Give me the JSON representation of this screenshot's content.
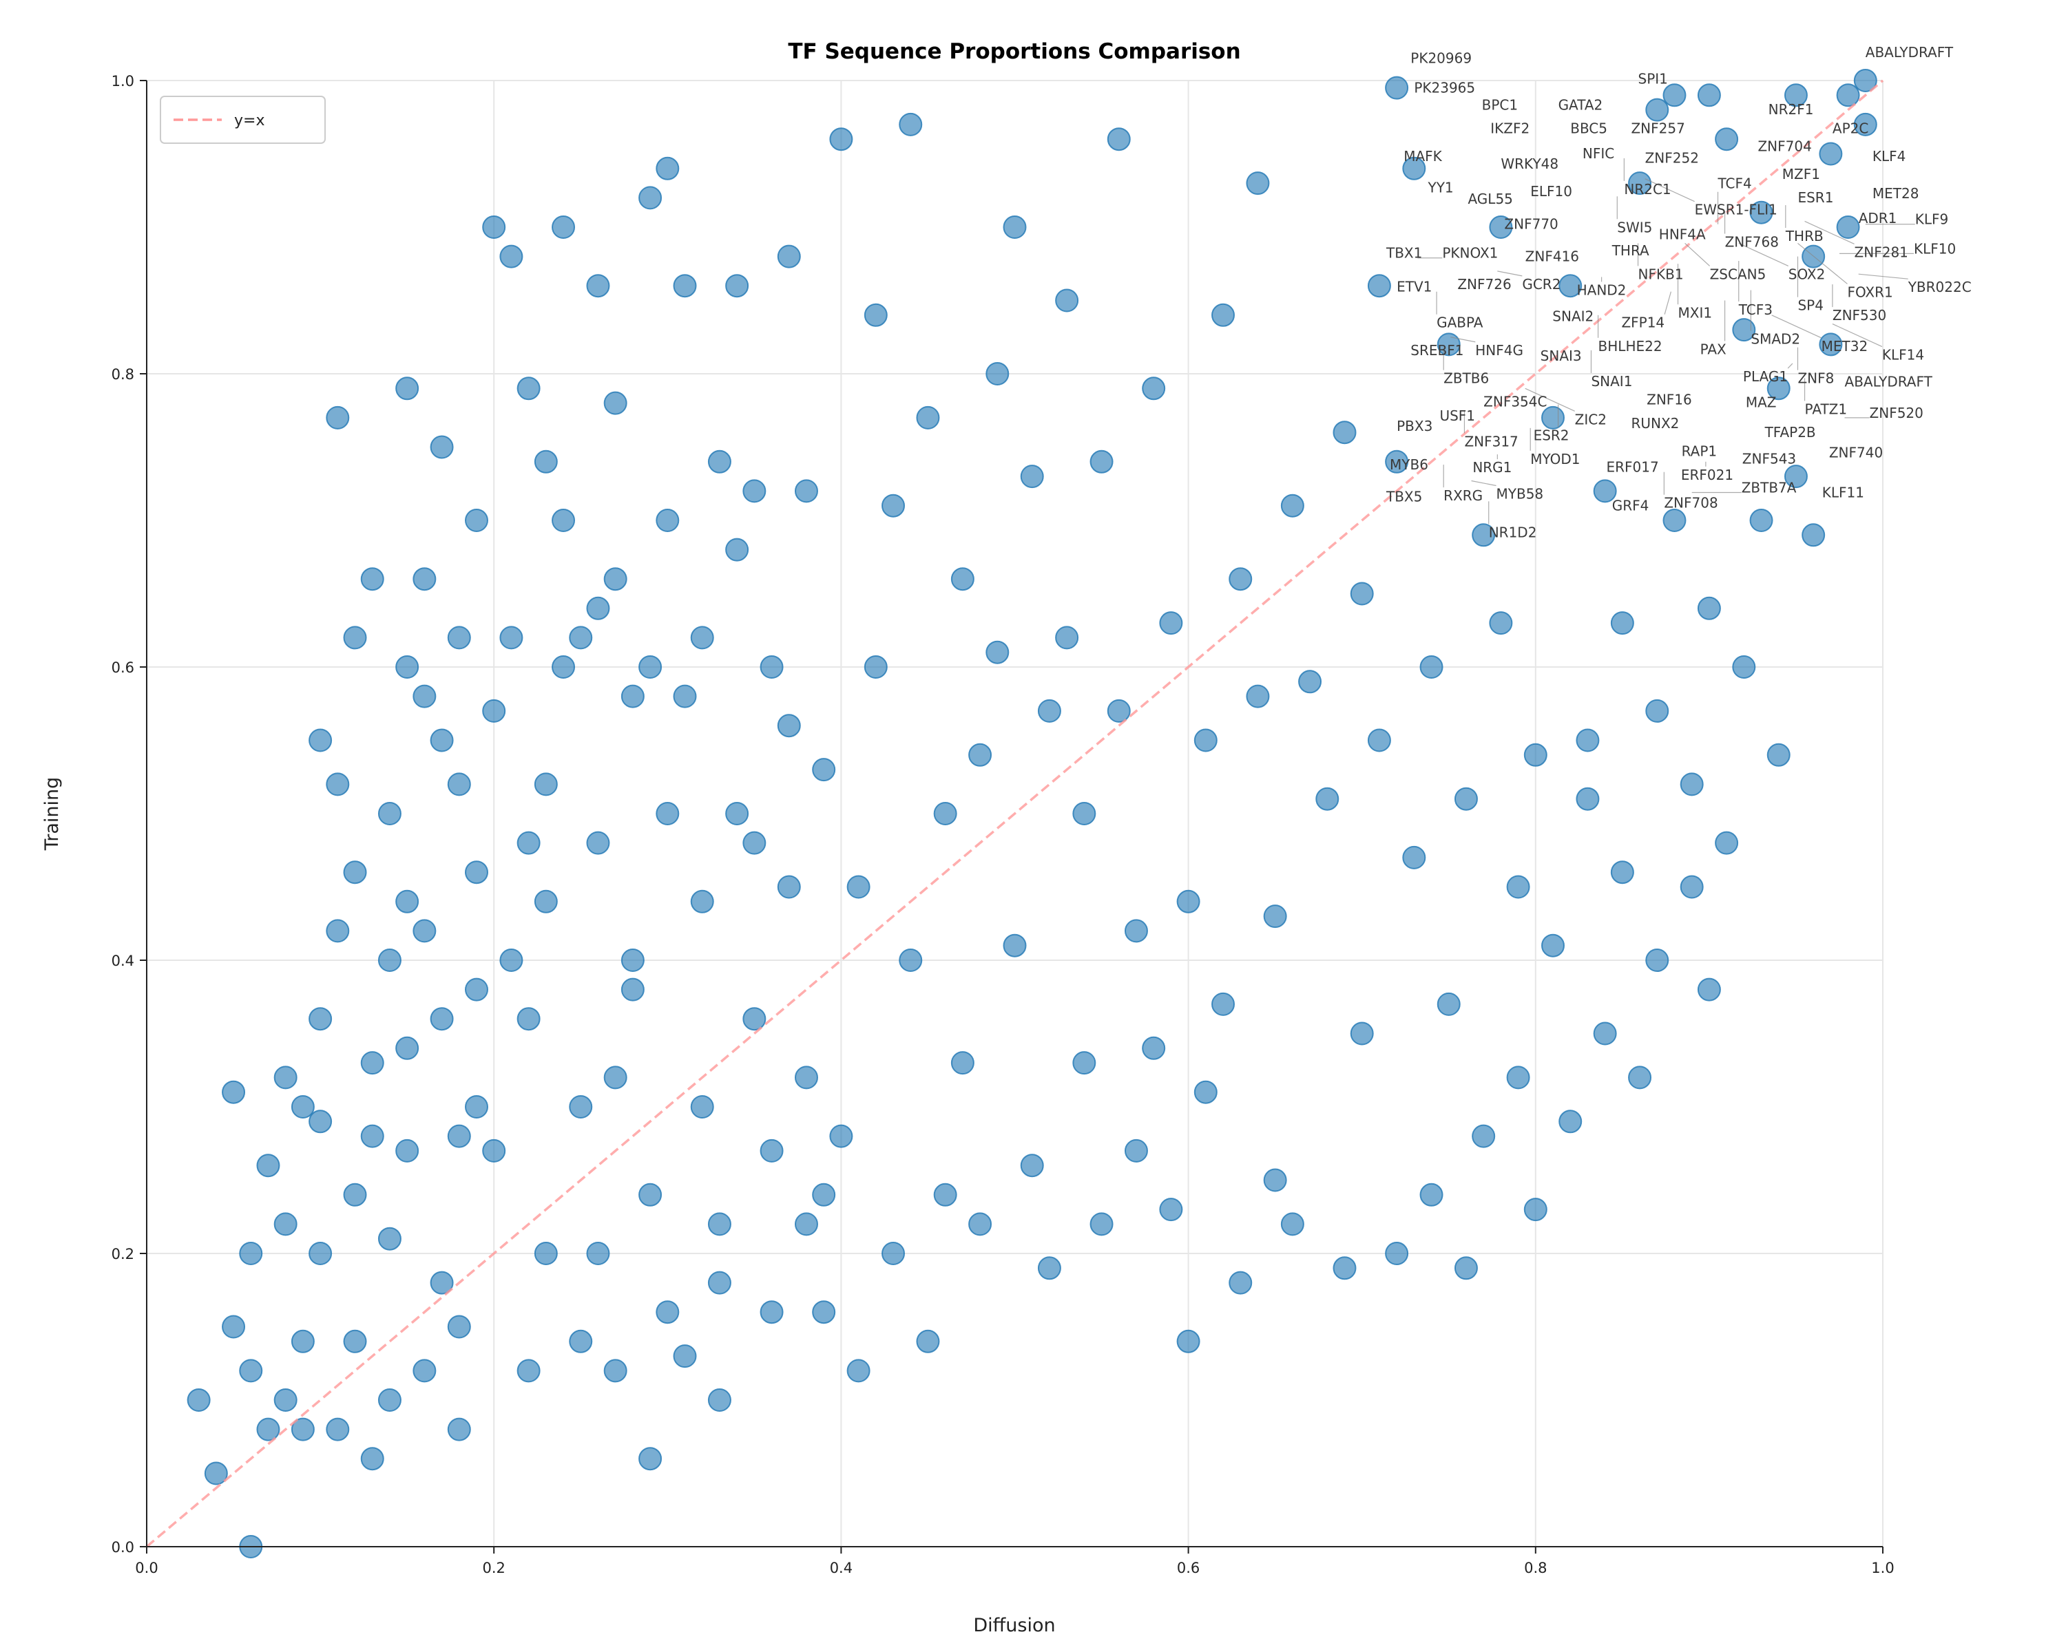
{
  "chart_data": {
    "type": "scatter",
    "title": "TF Sequence Proportions Comparison",
    "xlabel": "Diffusion",
    "ylabel": "Training",
    "xlim": [
      0,
      1
    ],
    "ylim": [
      0,
      1
    ],
    "xticks": [
      "0.0",
      "0.2",
      "0.4",
      "0.6",
      "0.8",
      "1.0"
    ],
    "yticks": [
      "0.0",
      "0.2",
      "0.4",
      "0.6",
      "0.8",
      "1.0"
    ],
    "grid": true,
    "legend": {
      "placement": "top-left",
      "entries": [
        {
          "label": "y=x",
          "style": "dashed",
          "color": "#ff9999"
        }
      ]
    },
    "reference_line": {
      "label": "y=x",
      "from": [
        0,
        0
      ],
      "to": [
        1,
        1
      ]
    },
    "marker_color": "#1f77b4",
    "points": [
      [
        0.03,
        0.1
      ],
      [
        0.04,
        0.05
      ],
      [
        0.05,
        0.15
      ],
      [
        0.06,
        0.2
      ],
      [
        0.07,
        0.26
      ],
      [
        0.08,
        0.1
      ],
      [
        0.09,
        0.08
      ],
      [
        0.09,
        0.3
      ],
      [
        0.1,
        0.36
      ],
      [
        0.1,
        0.2
      ],
      [
        0.11,
        0.42
      ],
      [
        0.12,
        0.24
      ],
      [
        0.12,
        0.14
      ],
      [
        0.13,
        0.33
      ],
      [
        0.13,
        0.06
      ],
      [
        0.14,
        0.5
      ],
      [
        0.15,
        0.27
      ],
      [
        0.15,
        0.44
      ],
      [
        0.16,
        0.58
      ],
      [
        0.16,
        0.12
      ],
      [
        0.17,
        0.36
      ],
      [
        0.17,
        0.18
      ],
      [
        0.18,
        0.52
      ],
      [
        0.18,
        0.08
      ],
      [
        0.19,
        0.3
      ],
      [
        0.06,
        0.0
      ],
      [
        0.07,
        0.08
      ],
      [
        0.08,
        0.32
      ],
      [
        0.1,
        0.55
      ],
      [
        0.11,
        0.52
      ],
      [
        0.12,
        0.62
      ],
      [
        0.14,
        0.4
      ],
      [
        0.15,
        0.6
      ],
      [
        0.16,
        0.66
      ],
      [
        0.17,
        0.75
      ],
      [
        0.18,
        0.62
      ],
      [
        0.19,
        0.46
      ],
      [
        0.2,
        0.57
      ],
      [
        0.2,
        0.9
      ],
      [
        0.21,
        0.62
      ],
      [
        0.21,
        0.88
      ],
      [
        0.22,
        0.79
      ],
      [
        0.22,
        0.36
      ],
      [
        0.23,
        0.52
      ],
      [
        0.23,
        0.2
      ],
      [
        0.24,
        0.7
      ],
      [
        0.24,
        0.9
      ],
      [
        0.25,
        0.62
      ],
      [
        0.25,
        0.3
      ],
      [
        0.26,
        0.86
      ],
      [
        0.26,
        0.48
      ],
      [
        0.27,
        0.66
      ],
      [
        0.27,
        0.12
      ],
      [
        0.28,
        0.58
      ],
      [
        0.28,
        0.38
      ],
      [
        0.29,
        0.92
      ],
      [
        0.29,
        0.24
      ],
      [
        0.3,
        0.7
      ],
      [
        0.3,
        0.5
      ],
      [
        0.31,
        0.86
      ],
      [
        0.31,
        0.13
      ],
      [
        0.32,
        0.62
      ],
      [
        0.32,
        0.3
      ],
      [
        0.33,
        0.74
      ],
      [
        0.33,
        0.18
      ],
      [
        0.34,
        0.5
      ],
      [
        0.34,
        0.86
      ],
      [
        0.35,
        0.36
      ],
      [
        0.35,
        0.72
      ],
      [
        0.36,
        0.16
      ],
      [
        0.36,
        0.6
      ],
      [
        0.37,
        0.88
      ],
      [
        0.37,
        0.45
      ],
      [
        0.38,
        0.22
      ],
      [
        0.38,
        0.72
      ],
      [
        0.39,
        0.16
      ],
      [
        0.39,
        0.53
      ],
      [
        0.4,
        0.96
      ],
      [
        0.4,
        0.28
      ],
      [
        0.41,
        0.45
      ],
      [
        0.41,
        0.12
      ],
      [
        0.42,
        0.6
      ],
      [
        0.42,
        0.84
      ],
      [
        0.43,
        0.71
      ],
      [
        0.43,
        0.2
      ],
      [
        0.44,
        0.4
      ],
      [
        0.44,
        0.97
      ],
      [
        0.45,
        0.14
      ],
      [
        0.45,
        0.77
      ],
      [
        0.46,
        0.5
      ],
      [
        0.46,
        0.24
      ],
      [
        0.47,
        0.66
      ],
      [
        0.47,
        0.33
      ],
      [
        0.48,
        0.54
      ],
      [
        0.48,
        0.22
      ],
      [
        0.49,
        0.8
      ],
      [
        0.49,
        0.61
      ],
      [
        0.5,
        0.41
      ],
      [
        0.5,
        0.9
      ],
      [
        0.51,
        0.26
      ],
      [
        0.51,
        0.73
      ],
      [
        0.52,
        0.57
      ],
      [
        0.52,
        0.19
      ],
      [
        0.53,
        0.85
      ],
      [
        0.53,
        0.62
      ],
      [
        0.54,
        0.33
      ],
      [
        0.54,
        0.5
      ],
      [
        0.55,
        0.74
      ],
      [
        0.55,
        0.22
      ],
      [
        0.56,
        0.96
      ],
      [
        0.56,
        0.57
      ],
      [
        0.57,
        0.42
      ],
      [
        0.57,
        0.27
      ],
      [
        0.58,
        0.79
      ],
      [
        0.58,
        0.34
      ],
      [
        0.59,
        0.63
      ],
      [
        0.59,
        0.23
      ],
      [
        0.6,
        0.44
      ],
      [
        0.6,
        0.14
      ],
      [
        0.61,
        0.55
      ],
      [
        0.61,
        0.31
      ],
      [
        0.62,
        0.84
      ],
      [
        0.62,
        0.37
      ],
      [
        0.63,
        0.66
      ],
      [
        0.63,
        0.18
      ],
      [
        0.64,
        0.93
      ],
      [
        0.64,
        0.58
      ],
      [
        0.65,
        0.43
      ],
      [
        0.65,
        0.25
      ],
      [
        0.66,
        0.71
      ],
      [
        0.66,
        0.22
      ],
      [
        0.67,
        0.59
      ],
      [
        0.68,
        0.51
      ],
      [
        0.69,
        0.76
      ],
      [
        0.69,
        0.19
      ],
      [
        0.7,
        0.65
      ],
      [
        0.7,
        0.35
      ],
      [
        0.71,
        0.86
      ],
      [
        0.71,
        0.55
      ],
      [
        0.72,
        0.74
      ],
      [
        0.72,
        0.2
      ],
      [
        0.73,
        0.94
      ],
      [
        0.73,
        0.47
      ],
      [
        0.74,
        0.6
      ],
      [
        0.74,
        0.24
      ],
      [
        0.75,
        0.82
      ],
      [
        0.75,
        0.37
      ],
      [
        0.76,
        0.51
      ],
      [
        0.76,
        0.19
      ],
      [
        0.77,
        0.69
      ],
      [
        0.77,
        0.28
      ],
      [
        0.78,
        0.9
      ],
      [
        0.78,
        0.63
      ],
      [
        0.79,
        0.45
      ],
      [
        0.79,
        0.32
      ],
      [
        0.8,
        0.54
      ],
      [
        0.8,
        0.23
      ],
      [
        0.81,
        0.77
      ],
      [
        0.81,
        0.41
      ],
      [
        0.82,
        0.86
      ],
      [
        0.82,
        0.29
      ],
      [
        0.83,
        0.55
      ],
      [
        0.83,
        0.51
      ],
      [
        0.84,
        0.72
      ],
      [
        0.84,
        0.35
      ],
      [
        0.85,
        0.63
      ],
      [
        0.85,
        0.46
      ],
      [
        0.86,
        0.93
      ],
      [
        0.86,
        0.32
      ],
      [
        0.87,
        0.57
      ],
      [
        0.87,
        0.4
      ],
      [
        0.88,
        0.99
      ],
      [
        0.88,
        0.7
      ],
      [
        0.89,
        0.45
      ],
      [
        0.89,
        0.52
      ],
      [
        0.9,
        0.64
      ],
      [
        0.9,
        0.38
      ],
      [
        0.91,
        0.96
      ],
      [
        0.91,
        0.48
      ],
      [
        0.92,
        0.6
      ],
      [
        0.92,
        0.83
      ],
      [
        0.93,
        0.91
      ],
      [
        0.93,
        0.7
      ],
      [
        0.94,
        0.54
      ],
      [
        0.94,
        0.79
      ],
      [
        0.95,
        0.99
      ],
      [
        0.95,
        0.73
      ],
      [
        0.96,
        0.88
      ],
      [
        0.96,
        0.69
      ],
      [
        0.97,
        0.95
      ],
      [
        0.97,
        0.82
      ],
      [
        0.98,
        0.99
      ],
      [
        0.98,
        0.9
      ],
      [
        0.99,
        1.0
      ],
      [
        0.99,
        0.97
      ],
      [
        0.72,
        0.995
      ],
      [
        0.87,
        0.98
      ],
      [
        0.9,
        0.99
      ],
      [
        0.05,
        0.31
      ],
      [
        0.06,
        0.12
      ],
      [
        0.08,
        0.22
      ],
      [
        0.09,
        0.14
      ],
      [
        0.1,
        0.29
      ],
      [
        0.11,
        0.08
      ],
      [
        0.12,
        0.46
      ],
      [
        0.13,
        0.28
      ],
      [
        0.14,
        0.21
      ],
      [
        0.15,
        0.34
      ],
      [
        0.16,
        0.42
      ],
      [
        0.17,
        0.55
      ],
      [
        0.18,
        0.28
      ],
      [
        0.19,
        0.38
      ],
      [
        0.2,
        0.27
      ],
      [
        0.21,
        0.4
      ],
      [
        0.22,
        0.48
      ],
      [
        0.23,
        0.44
      ],
      [
        0.24,
        0.6
      ],
      [
        0.25,
        0.14
      ],
      [
        0.26,
        0.64
      ],
      [
        0.27,
        0.32
      ],
      [
        0.28,
        0.4
      ],
      [
        0.29,
        0.6
      ],
      [
        0.3,
        0.16
      ],
      [
        0.31,
        0.58
      ],
      [
        0.32,
        0.44
      ],
      [
        0.33,
        0.22
      ],
      [
        0.34,
        0.68
      ],
      [
        0.35,
        0.48
      ],
      [
        0.36,
        0.27
      ],
      [
        0.37,
        0.56
      ],
      [
        0.38,
        0.32
      ],
      [
        0.39,
        0.24
      ],
      [
        0.13,
        0.66
      ],
      [
        0.11,
        0.77
      ],
      [
        0.15,
        0.79
      ],
      [
        0.19,
        0.7
      ],
      [
        0.23,
        0.74
      ],
      [
        0.27,
        0.78
      ],
      [
        0.3,
        0.94
      ],
      [
        0.22,
        0.12
      ],
      [
        0.18,
        0.15
      ],
      [
        0.14,
        0.1
      ],
      [
        0.26,
        0.2
      ],
      [
        0.29,
        0.06
      ],
      [
        0.33,
        0.1
      ]
    ],
    "annotations": [
      [
        "PK20969",
        0.728,
        1.012
      ],
      [
        "PK23965",
        0.73,
        1.004
      ],
      [
        "SPI1",
        0.859,
        0.998
      ],
      [
        "ABALYDRAFT",
        0.99,
        1.016
      ],
      [
        "BPC1",
        0.769,
        0.98
      ],
      [
        "GATA2",
        0.813,
        0.98
      ],
      [
        "IKZF2",
        0.774,
        0.964
      ],
      [
        "BBC5",
        0.82,
        0.964
      ],
      [
        "WRKY48",
        0.78,
        0.952
      ],
      [
        "ZNF257",
        0.855,
        0.964
      ],
      [
        "ZNF252",
        0.863,
        0.956
      ],
      [
        "NFIC",
        0.827,
        0.947
      ],
      [
        "NR2C1",
        0.851,
        0.947
      ],
      [
        "NR2F1",
        0.934,
        0.977
      ],
      [
        "ZNF704",
        0.928,
        0.964
      ],
      [
        "AP2C",
        0.971,
        0.964
      ],
      [
        "MZF1",
        0.942,
        0.945
      ],
      [
        "KLF4",
        0.994,
        0.945
      ],
      [
        "ESR1",
        0.951,
        0.929
      ],
      [
        "MET28",
        0.994,
        0.932
      ],
      [
        "EWSR1-FLI1",
        0.863,
        0.933
      ],
      [
        "SWI5",
        0.847,
        0.921
      ],
      [
        "MAFK",
        0.724,
        0.945
      ],
      [
        "YY1",
        0.738,
        0.936
      ],
      [
        "AGL55",
        0.761,
        0.916
      ],
      [
        "ZNF770",
        0.782,
        0.911
      ],
      [
        "ELF10",
        0.797,
        0.909
      ],
      [
        "THRB",
        0.944,
        0.915
      ],
      [
        "ADR1",
        0.986,
        0.915
      ],
      [
        "ZNF768",
        0.909,
        0.911
      ],
      [
        "HNF4A",
        0.871,
        0.904
      ],
      [
        "TCF4",
        0.905,
        0.902
      ],
      [
        "ZNF281",
        0.955,
        0.904
      ],
      [
        "KLF9",
        0.99,
        0.902
      ],
      [
        "ZNF416",
        0.794,
        0.889
      ],
      [
        "THRA",
        0.844,
        0.893
      ],
      [
        "NFKB1",
        0.859,
        0.889
      ],
      [
        "ZSCAN5",
        0.886,
        0.889
      ],
      [
        "SOX2",
        0.917,
        0.889
      ],
      [
        "FOXR1",
        0.951,
        0.889
      ],
      [
        "TBX1",
        0.714,
        0.879
      ],
      [
        "PKNOX1",
        0.732,
        0.879
      ],
      [
        "ZNF726",
        0.755,
        0.87
      ],
      [
        "GCR2",
        0.778,
        0.87
      ],
      [
        "HAND2",
        0.838,
        0.866
      ],
      [
        "MXI1",
        0.882,
        0.875
      ],
      [
        "TCF3",
        0.917,
        0.877
      ],
      [
        "SP4",
        0.951,
        0.88
      ],
      [
        "KLF10",
        0.975,
        0.882
      ],
      [
        "YBR022C",
        0.986,
        0.868
      ],
      [
        "ZFP14",
        0.878,
        0.856
      ],
      [
        "SMAD2",
        0.924,
        0.857
      ],
      [
        "ZNF530",
        0.971,
        0.861
      ],
      [
        "ETV1",
        0.72,
        0.856
      ],
      [
        "GABPA",
        0.743,
        0.856
      ],
      [
        "BHLHE22",
        0.836,
        0.84
      ],
      [
        "SNAI2",
        0.824,
        0.836
      ],
      [
        "PAX",
        0.909,
        0.85
      ],
      [
        "MET32",
        0.936,
        0.84
      ],
      [
        "KLF14",
        0.971,
        0.834
      ],
      [
        "SREBF1",
        0.728,
        0.825
      ],
      [
        "HNF4G",
        0.751,
        0.825
      ],
      [
        "ZBTB6",
        0.747,
        0.818
      ],
      [
        "SNAI1",
        0.832,
        0.816
      ],
      [
        "SNAI3",
        0.817,
        0.809
      ],
      [
        "ZNF8",
        0.951,
        0.818
      ],
      [
        "PLAG1",
        0.948,
        0.807
      ],
      [
        "PATZ1",
        0.955,
        0.797
      ],
      [
        "ZNF354C",
        0.77,
        0.79
      ],
      [
        "ZIC2",
        0.794,
        0.79
      ],
      [
        "ZNF317",
        0.759,
        0.775
      ],
      [
        "ESR2",
        0.813,
        0.779
      ],
      [
        "USF1",
        0.759,
        0.768
      ],
      [
        "MYOD1",
        0.797,
        0.763
      ],
      [
        "ZNF16",
        0.864,
        0.779
      ],
      [
        "RUNX2",
        0.855,
        0.763
      ],
      [
        "ABALYDRAFT",
        0.978,
        0.779
      ],
      [
        "ZNF520",
        0.978,
        0.77
      ],
      [
        "TFAP2B",
        0.932,
        0.769
      ],
      [
        "MAZ",
        0.921,
        0.765
      ],
      [
        "PBX3",
        0.72,
        0.761
      ],
      [
        "MYB6",
        0.716,
        0.747
      ],
      [
        "NRG1",
        0.778,
        0.745
      ],
      [
        "RXRG",
        0.747,
        0.738
      ],
      [
        "RAP1",
        0.884,
        0.756
      ],
      [
        "ZNF543",
        0.919,
        0.751
      ],
      [
        "ZNF740",
        0.969,
        0.743
      ],
      [
        "ERF021",
        0.898,
        0.74
      ],
      [
        "MYB58",
        0.763,
        0.727
      ],
      [
        "KLF11",
        0.965,
        0.728
      ],
      [
        "ERF017",
        0.855,
        0.733
      ],
      [
        "ZNF708",
        0.874,
        0.733
      ],
      [
        "GRF4",
        0.844,
        0.719
      ],
      [
        "ZBTB7A",
        0.89,
        0.719
      ],
      [
        "TBX5",
        0.714,
        0.713
      ],
      [
        "NR1D2",
        0.773,
        0.713
      ]
    ]
  }
}
